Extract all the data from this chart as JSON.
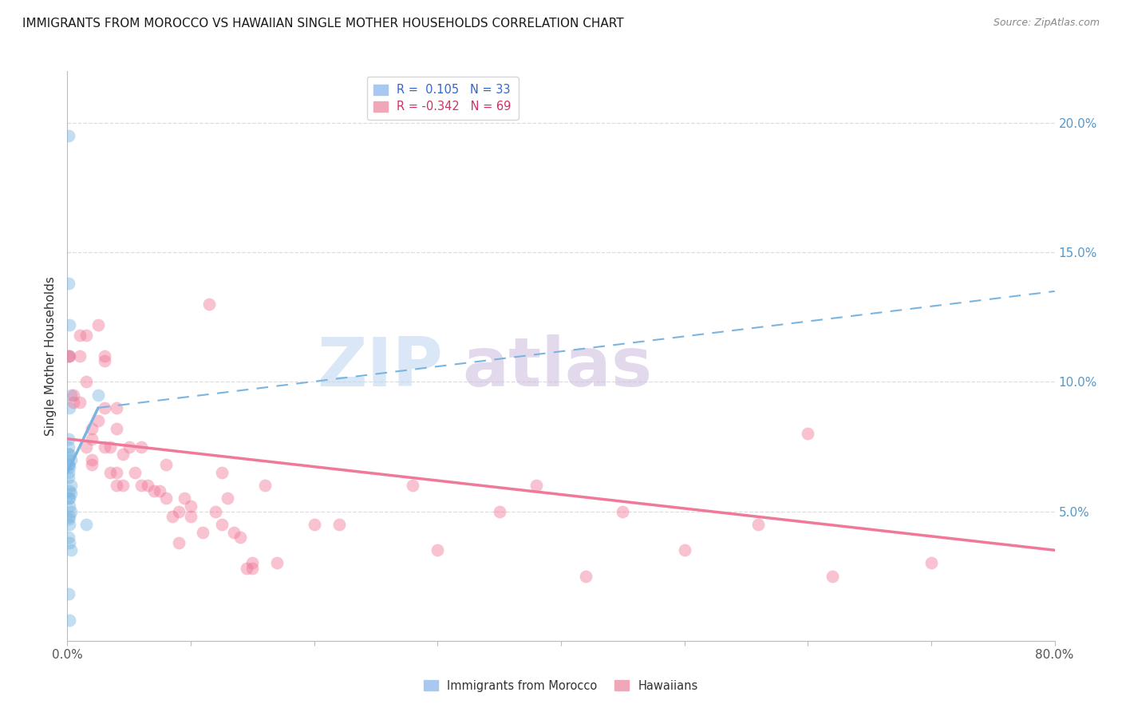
{
  "title": "IMMIGRANTS FROM MOROCCO VS HAWAIIAN SINGLE MOTHER HOUSEHOLDS CORRELATION CHART",
  "source": "Source: ZipAtlas.com",
  "ylabel": "Single Mother Households",
  "ytick_values": [
    0.0,
    0.05,
    0.1,
    0.15,
    0.2
  ],
  "xlim": [
    0.0,
    0.8
  ],
  "ylim": [
    0.0,
    0.22
  ],
  "blue_color": "#7ab4e0",
  "pink_color": "#f07898",
  "blue_scatter": [
    [
      0.001,
      0.195
    ],
    [
      0.001,
      0.138
    ],
    [
      0.002,
      0.122
    ],
    [
      0.001,
      0.11
    ],
    [
      0.003,
      0.095
    ],
    [
      0.002,
      0.09
    ],
    [
      0.025,
      0.095
    ],
    [
      0.001,
      0.078
    ],
    [
      0.001,
      0.075
    ],
    [
      0.002,
      0.072
    ],
    [
      0.001,
      0.072
    ],
    [
      0.003,
      0.07
    ],
    [
      0.001,
      0.068
    ],
    [
      0.001,
      0.068
    ],
    [
      0.002,
      0.067
    ],
    [
      0.001,
      0.065
    ],
    [
      0.001,
      0.063
    ],
    [
      0.003,
      0.06
    ],
    [
      0.002,
      0.058
    ],
    [
      0.003,
      0.057
    ],
    [
      0.002,
      0.055
    ],
    [
      0.001,
      0.055
    ],
    [
      0.002,
      0.052
    ],
    [
      0.003,
      0.05
    ],
    [
      0.002,
      0.048
    ],
    [
      0.001,
      0.047
    ],
    [
      0.002,
      0.045
    ],
    [
      0.015,
      0.045
    ],
    [
      0.001,
      0.04
    ],
    [
      0.002,
      0.038
    ],
    [
      0.003,
      0.035
    ],
    [
      0.001,
      0.018
    ],
    [
      0.002,
      0.008
    ]
  ],
  "pink_scatter": [
    [
      0.001,
      0.11
    ],
    [
      0.002,
      0.11
    ],
    [
      0.005,
      0.095
    ],
    [
      0.005,
      0.092
    ],
    [
      0.01,
      0.118
    ],
    [
      0.01,
      0.11
    ],
    [
      0.01,
      0.092
    ],
    [
      0.015,
      0.118
    ],
    [
      0.015,
      0.1
    ],
    [
      0.015,
      0.075
    ],
    [
      0.02,
      0.082
    ],
    [
      0.02,
      0.078
    ],
    [
      0.02,
      0.07
    ],
    [
      0.02,
      0.068
    ],
    [
      0.025,
      0.122
    ],
    [
      0.025,
      0.085
    ],
    [
      0.03,
      0.11
    ],
    [
      0.03,
      0.108
    ],
    [
      0.03,
      0.09
    ],
    [
      0.03,
      0.075
    ],
    [
      0.035,
      0.075
    ],
    [
      0.035,
      0.065
    ],
    [
      0.04,
      0.09
    ],
    [
      0.04,
      0.082
    ],
    [
      0.04,
      0.065
    ],
    [
      0.04,
      0.06
    ],
    [
      0.045,
      0.072
    ],
    [
      0.045,
      0.06
    ],
    [
      0.05,
      0.075
    ],
    [
      0.055,
      0.065
    ],
    [
      0.06,
      0.075
    ],
    [
      0.06,
      0.06
    ],
    [
      0.065,
      0.06
    ],
    [
      0.07,
      0.058
    ],
    [
      0.075,
      0.058
    ],
    [
      0.08,
      0.068
    ],
    [
      0.08,
      0.055
    ],
    [
      0.085,
      0.048
    ],
    [
      0.09,
      0.05
    ],
    [
      0.09,
      0.038
    ],
    [
      0.095,
      0.055
    ],
    [
      0.1,
      0.052
    ],
    [
      0.1,
      0.048
    ],
    [
      0.11,
      0.042
    ],
    [
      0.115,
      0.13
    ],
    [
      0.12,
      0.05
    ],
    [
      0.125,
      0.065
    ],
    [
      0.125,
      0.045
    ],
    [
      0.13,
      0.055
    ],
    [
      0.135,
      0.042
    ],
    [
      0.14,
      0.04
    ],
    [
      0.145,
      0.028
    ],
    [
      0.15,
      0.03
    ],
    [
      0.15,
      0.028
    ],
    [
      0.16,
      0.06
    ],
    [
      0.17,
      0.03
    ],
    [
      0.2,
      0.045
    ],
    [
      0.22,
      0.045
    ],
    [
      0.28,
      0.06
    ],
    [
      0.3,
      0.035
    ],
    [
      0.35,
      0.05
    ],
    [
      0.38,
      0.06
    ],
    [
      0.42,
      0.025
    ],
    [
      0.45,
      0.05
    ],
    [
      0.5,
      0.035
    ],
    [
      0.56,
      0.045
    ],
    [
      0.6,
      0.08
    ],
    [
      0.62,
      0.025
    ],
    [
      0.7,
      0.03
    ]
  ],
  "blue_solid_line": [
    [
      0.0,
      0.065
    ],
    [
      0.025,
      0.09
    ]
  ],
  "blue_dashed_line": [
    [
      0.025,
      0.09
    ],
    [
      0.8,
      0.135
    ]
  ],
  "pink_solid_line": [
    [
      0.0,
      0.078
    ],
    [
      0.8,
      0.035
    ]
  ],
  "background_color": "#ffffff",
  "grid_color": "#dddddd",
  "title_color": "#1a1a1a",
  "source_color": "#888888",
  "ylabel_color": "#333333",
  "right_tick_color": "#5599cc",
  "legend1_blue_text": "R =  0.105   N = 33",
  "legend1_pink_text": "R = -0.342   N = 69",
  "legend2_blue_text": "Immigrants from Morocco",
  "legend2_pink_text": "Hawaiians",
  "watermark_zip_color": "#c0d8f0",
  "watermark_atlas_color": "#d0c0e0"
}
